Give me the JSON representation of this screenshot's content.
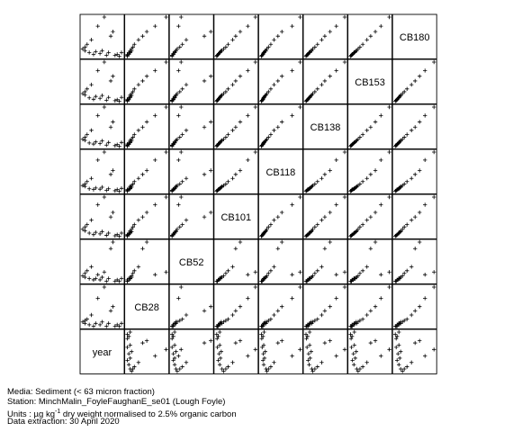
{
  "chart_data": {
    "type": "scatter-matrix",
    "point_symbol": "+",
    "variables": [
      "CB180",
      "CB153",
      "CB138",
      "CB118",
      "CB101",
      "CB52",
      "CB28",
      "year"
    ],
    "records": [
      {
        "year": 1999,
        "CB28": 0.35,
        "CB52": 0.9,
        "CB101": 1.8,
        "CB118": 1.4,
        "CB138": 2.7,
        "CB153": 3.3,
        "CB180": 1.5
      },
      {
        "year": 2000,
        "CB28": 0.4,
        "CB52": 1.1,
        "CB101": 2.1,
        "CB118": 1.6,
        "CB138": 3.1,
        "CB153": 3.7,
        "CB180": 1.7
      },
      {
        "year": 2000,
        "CB28": 0.3,
        "CB52": 0.8,
        "CB101": 1.6,
        "CB118": 1.3,
        "CB138": 2.5,
        "CB153": 3.0,
        "CB180": 1.3
      },
      {
        "year": 2001,
        "CB28": 0.45,
        "CB52": 1.3,
        "CB101": 2.4,
        "CB118": 1.9,
        "CB138": 3.6,
        "CB153": 4.3,
        "CB180": 2.0
      },
      {
        "year": 2002,
        "CB28": 0.25,
        "CB52": 0.7,
        "CB101": 1.3,
        "CB118": 1.0,
        "CB138": 2.0,
        "CB153": 2.4,
        "CB180": 1.1
      },
      {
        "year": 2003,
        "CB28": 0.6,
        "CB52": 1.6,
        "CB101": 3.0,
        "CB118": 2.3,
        "CB138": 4.4,
        "CB153": 5.2,
        "CB180": 2.5
      },
      {
        "year": 2004,
        "CB28": 0.2,
        "CB52": 0.6,
        "CB101": 1.1,
        "CB118": 0.9,
        "CB138": 1.8,
        "CB153": 2.1,
        "CB180": 0.9
      },
      {
        "year": 2005,
        "CB28": 0.3,
        "CB52": 0.7,
        "CB101": 1.4,
        "CB118": 1.1,
        "CB138": 2.2,
        "CB153": 2.7,
        "CB180": 1.2
      },
      {
        "year": 2006,
        "CB28": 1.2,
        "CB52": 1.0,
        "CB101": 5.0,
        "CB118": 4.6,
        "CB138": 7.2,
        "CB153": 8.2,
        "CB180": 4.0
      },
      {
        "year": 2007,
        "CB28": 0.25,
        "CB52": 0.6,
        "CB101": 1.2,
        "CB118": 0.95,
        "CB138": 1.9,
        "CB153": 2.3,
        "CB180": 1.0
      },
      {
        "year": 2008,
        "CB28": 0.35,
        "CB52": 0.8,
        "CB101": 1.5,
        "CB118": 1.2,
        "CB138": 2.4,
        "CB153": 2.9,
        "CB180": 1.3
      },
      {
        "year": 2009,
        "CB28": 1.6,
        "CB52": 1.2,
        "CB101": 6.0,
        "CB118": 5.6,
        "CB138": 8.8,
        "CB153": 10.0,
        "CB180": 5.0
      },
      {
        "year": 2010,
        "CB28": 0.2,
        "CB52": 0.5,
        "CB101": 1.0,
        "CB118": 0.8,
        "CB138": 1.6,
        "CB153": 1.9,
        "CB180": 0.8
      },
      {
        "year": 2011,
        "CB28": 0.3,
        "CB52": 0.7,
        "CB101": 1.3,
        "CB118": 1.0,
        "CB138": 2.1,
        "CB153": 2.5,
        "CB180": 1.1
      },
      {
        "year": 2012,
        "CB28": 0.75,
        "CB52": 3.0,
        "CB101": 3.4,
        "CB118": 2.8,
        "CB138": 5.0,
        "CB153": 6.0,
        "CB180": 2.9
      },
      {
        "year": 2013,
        "CB28": 0.9,
        "CB52": 3.5,
        "CB101": 4.0,
        "CB118": 3.3,
        "CB138": 6.0,
        "CB153": 7.0,
        "CB180": 3.4
      },
      {
        "year": 2014,
        "CB28": 0.2,
        "CB52": 0.5,
        "CB101": 0.95,
        "CB118": 0.75,
        "CB138": 1.5,
        "CB153": 1.8,
        "CB180": 0.8
      },
      {
        "year": 2015,
        "CB28": 0.25,
        "CB52": 0.6,
        "CB101": 1.1,
        "CB118": 0.9,
        "CB138": 1.7,
        "CB153": 2.0,
        "CB180": 0.9
      },
      {
        "year": 2016,
        "CB28": 0.2,
        "CB52": 0.5,
        "CB101": 0.9,
        "CB118": 0.7,
        "CB138": 1.4,
        "CB153": 1.7,
        "CB180": 0.7
      },
      {
        "year": 2017,
        "CB28": 0.3,
        "CB52": 0.7,
        "CB101": 1.3,
        "CB118": 1.05,
        "CB138": 2.1,
        "CB153": 2.5,
        "CB180": 1.1
      }
    ]
  },
  "caption": {
    "media": "Media: Sediment (< 63 micron fraction)",
    "station": "Station: MinchMalin_FoyleFaughanE_se01 (Lough Foyle)",
    "units_prefix": "Units : µg kg",
    "units_exp": "-1",
    "units_suffix": " dry weight normalised to 2.5% organic carbon",
    "extraction": "Data extraction: 30 April 2020"
  }
}
